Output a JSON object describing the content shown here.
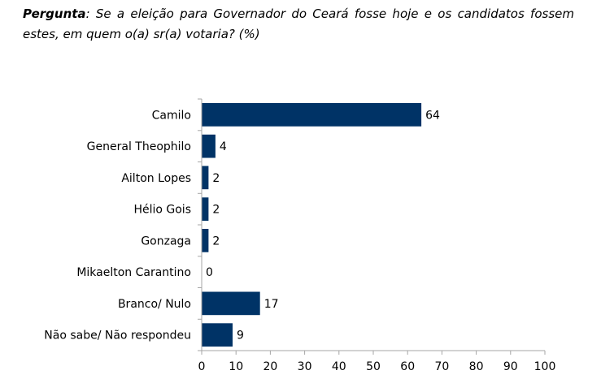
{
  "question": {
    "label": "Pergunta",
    "text": ": Se a eleição para Governador do Ceará fosse hoje e os candidatos fossem estes, em quem o(a) sr(a) votaria? (%)"
  },
  "chart_data": {
    "type": "bar",
    "orientation": "horizontal",
    "categories": [
      "Camilo",
      "General Theophilo",
      "Ailton Lopes",
      "Hélio Gois",
      "Gonzaga",
      "Mikaelton Carantino",
      "Branco/ Nulo",
      "Não sabe/ Não respondeu"
    ],
    "values": [
      64,
      4,
      2,
      2,
      2,
      0,
      17,
      9
    ],
    "xlim": [
      0,
      100
    ],
    "xticks": [
      0,
      10,
      20,
      30,
      40,
      50,
      60,
      70,
      80,
      90,
      100
    ],
    "bar_color": "#003366",
    "grid": false,
    "data_labels": true
  }
}
